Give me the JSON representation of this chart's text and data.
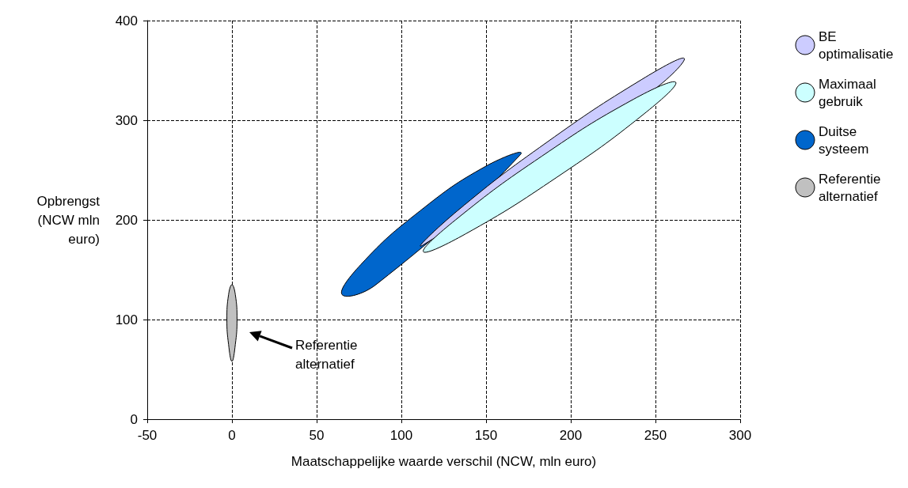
{
  "chart_data": {
    "type": "area",
    "xlabel": "Maatschappelijke waarde verschil (NCW, mln euro)",
    "ylabel": "Opbrengst (NCW mln euro)",
    "xlim": [
      -50,
      300
    ],
    "xticks": [
      -50,
      0,
      50,
      100,
      150,
      200,
      250,
      300
    ],
    "ylim": [
      0,
      400
    ],
    "yticks": [
      0,
      100,
      200,
      300,
      400
    ],
    "grid": true,
    "line_style": "dashed",
    "legend": "right",
    "annotations": [
      "Referentie alternatief"
    ],
    "series": [
      {
        "name": "BE optimalisatie",
        "color": "#ccccff",
        "x": [
          267,
          247,
          194,
          138,
          113,
          133,
          186,
          242
        ],
        "values": [
          362,
          328,
          null,
          null,
          175,
          209,
          278,
          341
        ]
      },
      {
        "name": "Maximaal gebruik",
        "color": "#ccffff",
        "x": [
          262,
          243,
          192,
          138,
          113,
          132,
          183,
          237
        ],
        "values": [
          338,
          306,
          243,
          186,
          168,
          200,
          264,
          321
        ]
      },
      {
        "name": "Duitse systeem",
        "color": "#0066cc",
        "x": [
          170,
          160,
          124,
          85,
          65,
          76,
          111,
          150
        ],
        "values": [
          265,
          null,
          null,
          135,
          125,
          155,
          209,
          254
        ]
      },
      {
        "name": "Referentie alternatief",
        "color": "#c0c0c0",
        "x": [
          0,
          2,
          3,
          2,
          0,
          -2,
          -3,
          -2
        ],
        "values": [
          135,
          125,
          100,
          75,
          58,
          75,
          100,
          125
        ]
      }
    ]
  }
}
